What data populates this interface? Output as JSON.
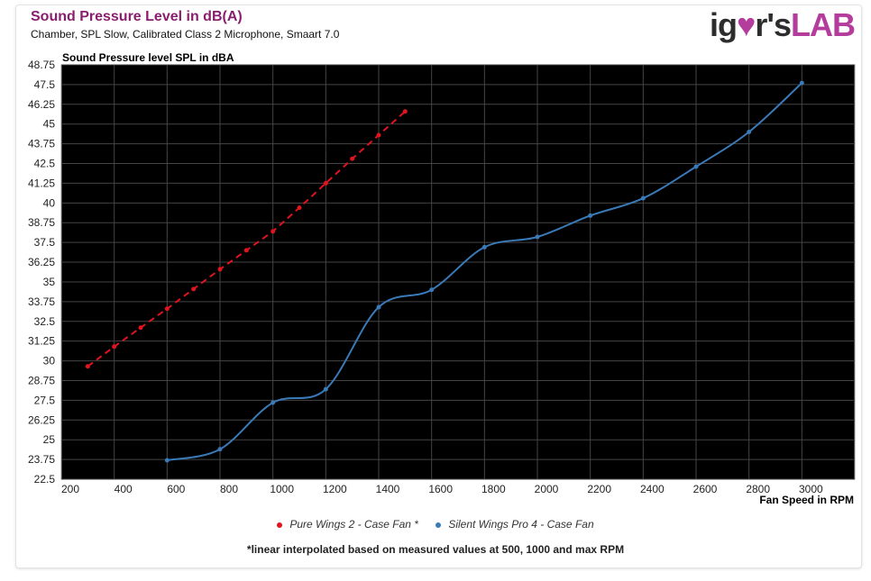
{
  "header": {
    "title": "Sound Pressure Level in dB(A)",
    "subtitle": "Chamber, SPL Slow, Calibrated Class 2 Microphone, Smaart 7.0",
    "logo_text": "igor'sLAB"
  },
  "note": "*linear interpolated based on measured values at 500, 1000 and max RPM",
  "colors": {
    "background": "#000000",
    "grid": "#444444",
    "red": "#e0141e",
    "blue": "#3a7ab8",
    "title": "#8a1e6e"
  },
  "chart_data": {
    "type": "line",
    "title": "Sound Pressure Level in dB(A)",
    "ylabel": "Sound Pressure level SPL in dBA",
    "xlabel": "Fan Speed in RPM",
    "xlim": [
      200,
      3200
    ],
    "ylim": [
      22.5,
      48.75
    ],
    "xticks": [
      "200",
      "400",
      "600",
      "800",
      "1000",
      "1200",
      "1400",
      "1600",
      "1800",
      "2000",
      "2200",
      "2400",
      "2600",
      "2800",
      "3000"
    ],
    "yticks": [
      "22.5",
      "23.75",
      "25",
      "26.25",
      "27.5",
      "28.75",
      "30",
      "31.25",
      "32.5",
      "33.75",
      "35",
      "36.25",
      "37.5",
      "38.75",
      "40",
      "41.25",
      "42.5",
      "43.75",
      "45",
      "46.25",
      "47.5",
      "48.75"
    ],
    "grid": true,
    "legend_position": "bottom",
    "series": [
      {
        "name": "Pure Wings 2 - Case Fan *",
        "style": "dashed",
        "color": "#e0141e",
        "x": [
          300,
          400,
          500,
          600,
          700,
          800,
          900,
          1000,
          1100,
          1200,
          1300,
          1400,
          1500
        ],
        "y": [
          29.65,
          30.9,
          32.1,
          33.3,
          34.55,
          35.8,
          37.0,
          38.2,
          39.7,
          41.25,
          42.8,
          44.3,
          45.8
        ]
      },
      {
        "name": "Silent Wings Pro 4 - Case Fan",
        "style": "smooth",
        "color": "#3a7ab8",
        "x": [
          600,
          800,
          1000,
          1200,
          1400,
          1600,
          1800,
          2000,
          2200,
          2400,
          2600,
          2800,
          3000
        ],
        "y": [
          23.7,
          24.4,
          27.35,
          28.2,
          33.4,
          34.5,
          37.2,
          37.85,
          39.2,
          40.3,
          42.3,
          44.5,
          47.6
        ]
      }
    ]
  }
}
